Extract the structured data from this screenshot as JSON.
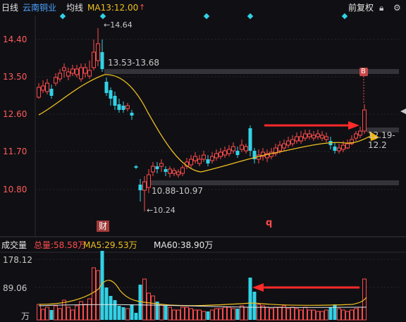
{
  "header": {
    "period": "日线",
    "stock_name": "云南铜业",
    "indicator": "均线",
    "ma_label": "MA13:12.00",
    "adjust": "前复权",
    "lock_icon": "lock-icon",
    "gear_icon": "gear-icon"
  },
  "price_axis": [
    "14.40",
    "13.50",
    "12.60",
    "11.70",
    "10.80"
  ],
  "annotations": {
    "high": "←14.64",
    "low": "←10.24",
    "resistance": "13.53-13.68",
    "support": "10.88-10.97",
    "current_zone": "12.19-12.2",
    "buy_marker": "B",
    "finance_marker": "财",
    "q_marker": "q"
  },
  "volume": {
    "title": "成交量",
    "total": "总量:58.58万",
    "ma5": "MA5:29.53万",
    "ma60": "MA60:38.90万",
    "axis_top": "178.12",
    "axis_mid": "89.06",
    "unit": "万"
  },
  "colors": {
    "up": "#ff4b4b",
    "down": "#32d2e6",
    "ma13": "#f0c020",
    "arrow_red": "#ff2a2a",
    "arrow_yellow": "#f5b500"
  }
}
